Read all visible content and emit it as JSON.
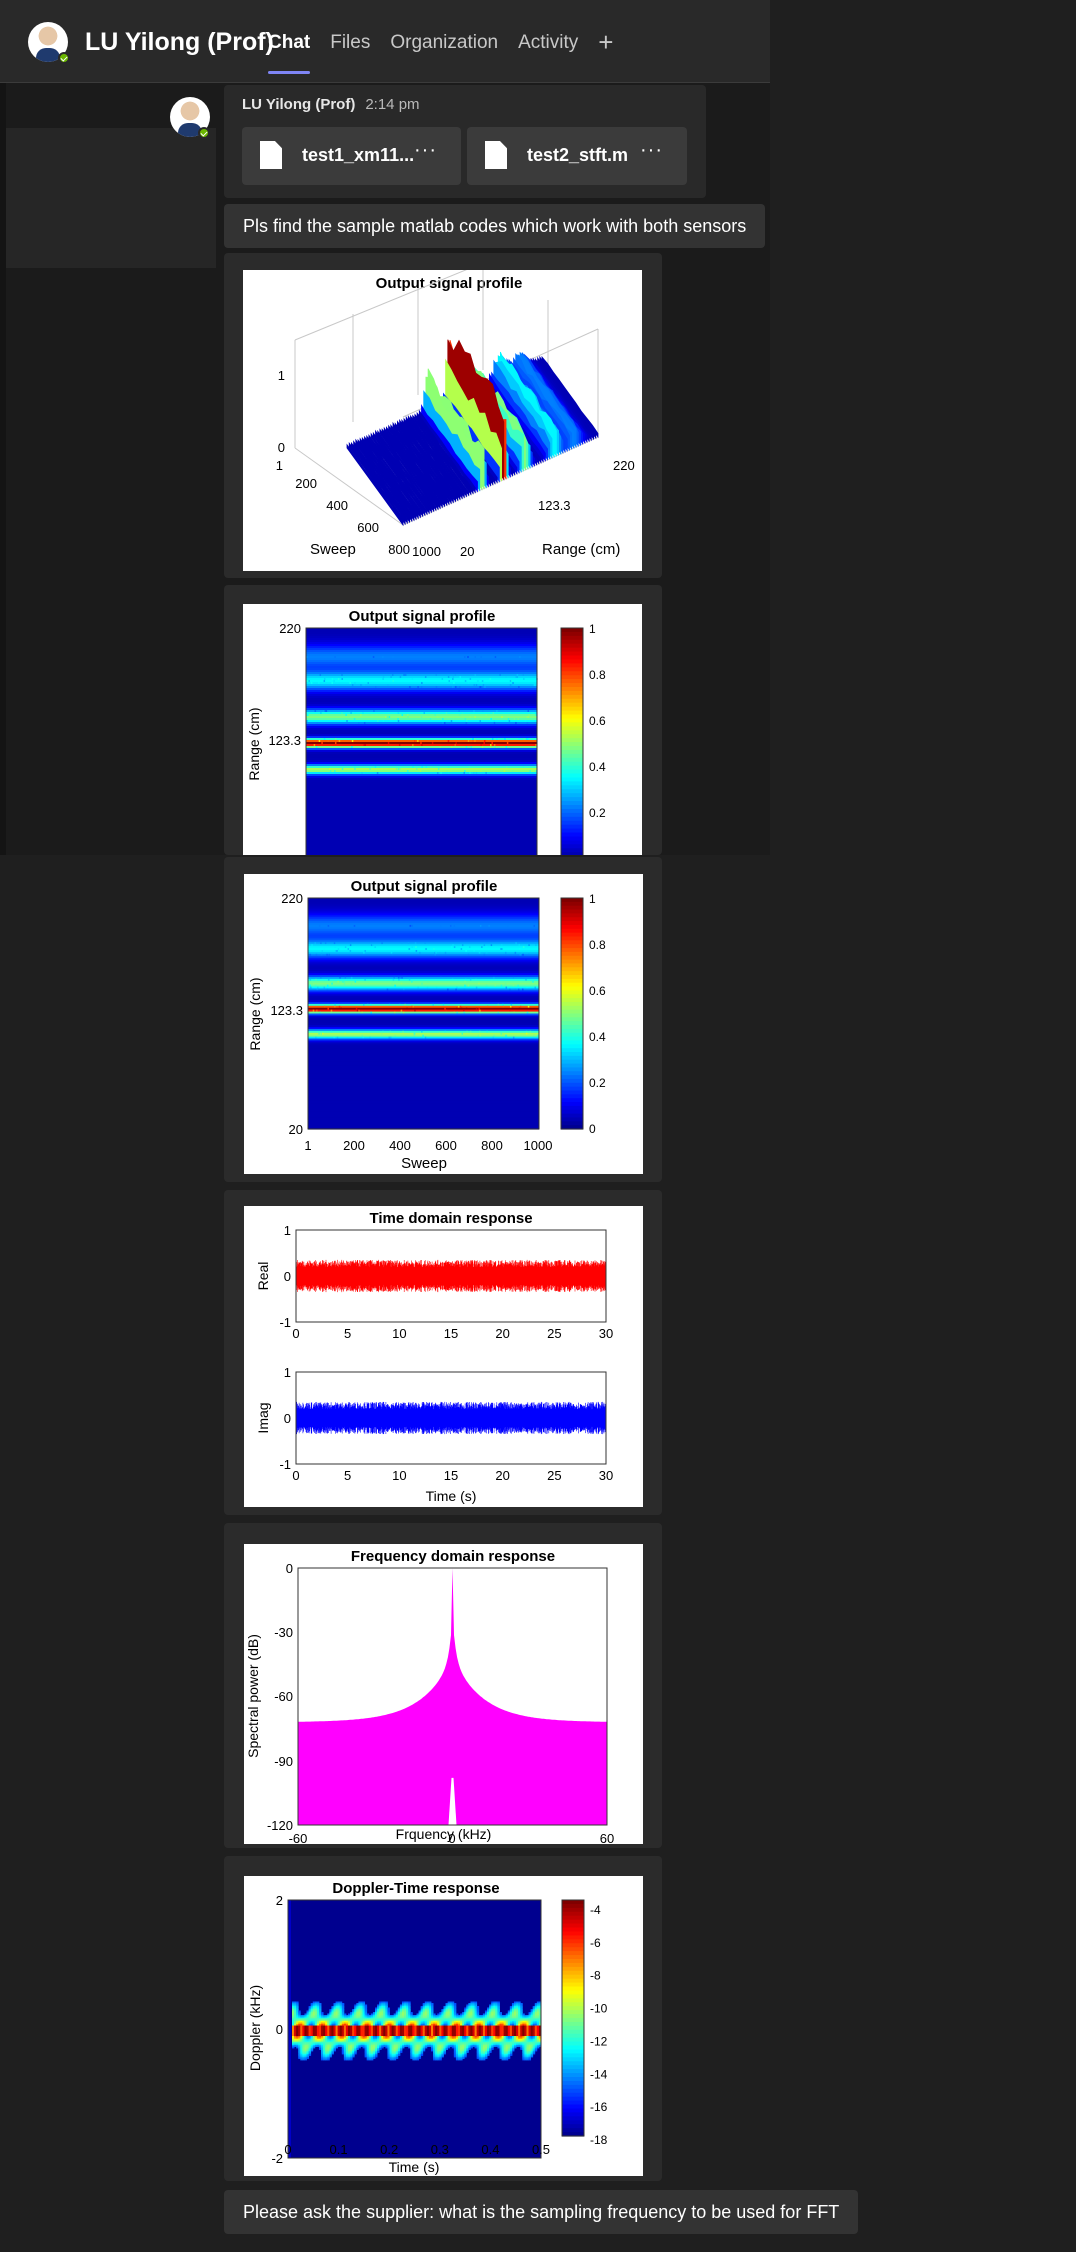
{
  "header": {
    "name": "LU Yilong (Prof)",
    "tabs": [
      {
        "label": "Chat"
      },
      {
        "label": "Files"
      },
      {
        "label": "Organization"
      },
      {
        "label": "Activity"
      }
    ],
    "add_icon": "plus-icon"
  },
  "message": {
    "sender": "LU Yilong (Prof)",
    "time": "2:14 pm",
    "files": [
      {
        "name": "test1_xm11...",
        "more": "···",
        "icon": "file-icon"
      },
      {
        "name": "test2_stft.m",
        "more": "···",
        "icon": "file-icon"
      }
    ],
    "text1": "Pls find the sample matlab codes which work with both sensors",
    "text2": "Please ask the supplier: what is the sampling frequency to be used for FFT"
  },
  "chart_data": [
    {
      "type": "surface",
      "title": "Output signal profile",
      "xlabel": "Sweep",
      "ylabel": "Range (cm)",
      "x_ticks": [
        "1",
        "200",
        "400",
        "600",
        "800",
        "1000"
      ],
      "y_ticks": [
        "20",
        "123.3",
        "220"
      ],
      "z_ticks": [
        "0",
        "1"
      ],
      "xlim": [
        1,
        1000
      ],
      "ylim": [
        20,
        220
      ],
      "zlim": [
        0,
        1
      ],
      "colormap": "jet"
    },
    {
      "type": "heatmap",
      "title": "Output signal profile",
      "ylabel": "Range (cm)",
      "y_ticks": [
        "123.3",
        "220"
      ],
      "colorbar_ticks": [
        "0.2",
        "0.4",
        "0.6",
        "0.8",
        "1"
      ],
      "ylim": [
        20,
        220
      ],
      "colormap": "jet",
      "note_cropped": "image cut off at bottom"
    },
    {
      "type": "heatmap",
      "title": "Output signal profile",
      "xlabel": "Sweep",
      "ylabel": "Range (cm)",
      "x_ticks": [
        "1",
        "200",
        "400",
        "600",
        "800",
        "1000"
      ],
      "y_ticks": [
        "20",
        "123.3",
        "220"
      ],
      "colorbar_ticks": [
        "0",
        "0.2",
        "0.4",
        "0.6",
        "0.8",
        "1"
      ],
      "xlim": [
        1,
        1000
      ],
      "ylim": [
        20,
        220
      ],
      "colormap": "jet",
      "bands": [
        {
          "range": 123.3,
          "level": 1.0
        },
        {
          "range": 101,
          "level": 0.45
        },
        {
          "range": 146,
          "level": 0.45
        },
        {
          "range": 175,
          "level": 0.35
        }
      ]
    },
    {
      "type": "line",
      "title": "Time domain response",
      "subplots": [
        {
          "ylabel": "Real",
          "color": "#ff0000",
          "ylim": [
            -1,
            1
          ],
          "y_ticks": [
            "-1",
            "0",
            "1"
          ]
        },
        {
          "ylabel": "Imag",
          "color": "#0000ff",
          "ylim": [
            -1,
            1
          ],
          "y_ticks": [
            "-1",
            "0",
            "1"
          ]
        }
      ],
      "xlabel": "Time (s)",
      "x_ticks": [
        "0",
        "5",
        "10",
        "15",
        "20",
        "25",
        "30"
      ],
      "xlim": [
        0,
        30
      ],
      "noise_amplitude": 0.35
    },
    {
      "type": "area",
      "title": "Frequency domain response",
      "xlabel": "Frquency (kHz)",
      "ylabel": "Spectral power (dB)",
      "x_ticks": [
        "-60",
        "0",
        "60"
      ],
      "y_ticks": [
        "-120",
        "-90",
        "-60",
        "-30",
        "0"
      ],
      "xlim": [
        -60,
        60
      ],
      "ylim": [
        -120,
        0
      ],
      "color": "#ff00ff",
      "peak_x": 0,
      "peak_y": 0,
      "edge_level": -72
    },
    {
      "type": "heatmap",
      "title": "Doppler-Time response",
      "xlabel": "Time (s)",
      "ylabel": "Doppler (kHz)",
      "x_ticks": [
        "0",
        "0.1",
        "0.2",
        "0.3",
        "0.4",
        "0.5"
      ],
      "y_ticks": [
        "-2",
        "0",
        "2"
      ],
      "colorbar_ticks": [
        "-18",
        "-16",
        "-14",
        "-12",
        "-10",
        "-8",
        "-6",
        "-4"
      ],
      "xlim": [
        0,
        0.5
      ],
      "ylim": [
        -2,
        2
      ],
      "clim": [
        -18,
        -3
      ],
      "colormap": "jet"
    }
  ]
}
